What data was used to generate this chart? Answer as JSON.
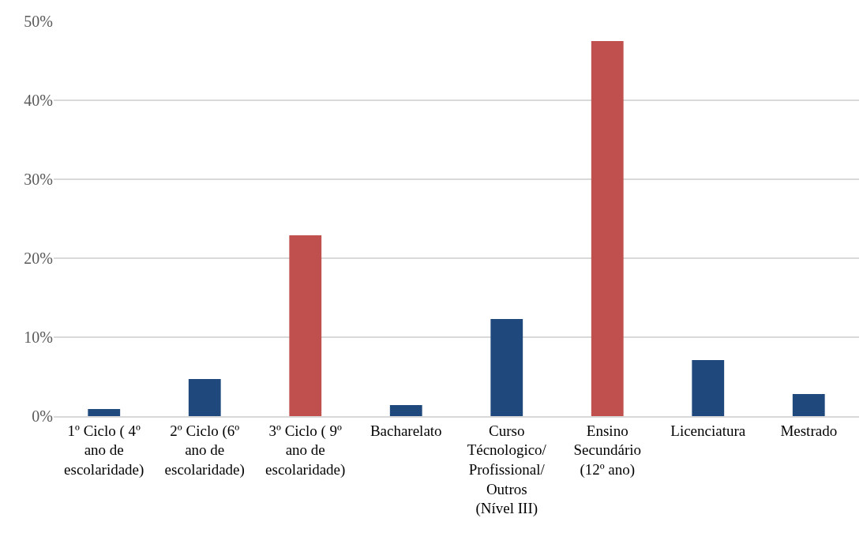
{
  "chart_data": {
    "type": "bar",
    "categories": [
      "1º Ciclo ( 4º\nano de\nescolaridade)",
      "2º Ciclo (6º\nano de\nescolaridade)",
      "3º Ciclo ( 9º\nano de\nescolaridade)",
      "Bacharelato",
      "Curso\nTécnologico/\nProfissional/\nOutros\n(Nível III)",
      "Ensino\nSecundário\n(12º ano)",
      "Licenciatura",
      "Mestrado"
    ],
    "values": [
      0.9,
      4.7,
      22.9,
      1.4,
      12.3,
      47.5,
      7.1,
      2.8
    ],
    "colors": [
      "#1f497d",
      "#1f497d",
      "#c0504d",
      "#1f497d",
      "#1f497d",
      "#c0504d",
      "#1f497d",
      "#1f497d"
    ],
    "ylim": [
      0,
      50
    ],
    "yticks": [
      {
        "value": 0,
        "label": "0%"
      },
      {
        "value": 10,
        "label": "10%"
      },
      {
        "value": 20,
        "label": "20%"
      },
      {
        "value": 30,
        "label": "30%"
      },
      {
        "value": 40,
        "label": "40%"
      },
      {
        "value": 50,
        "label": "50%"
      }
    ],
    "grid": "y"
  }
}
